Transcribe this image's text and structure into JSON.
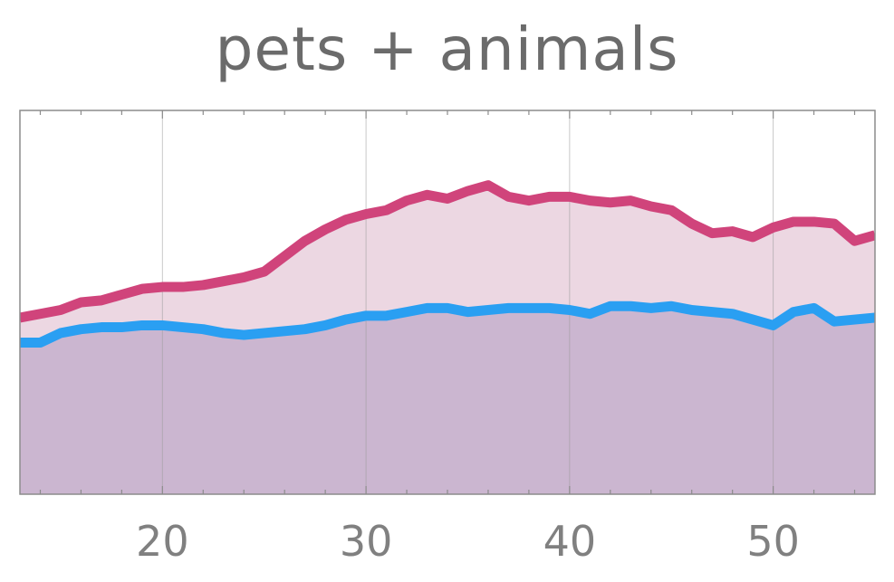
{
  "chart_data": {
    "type": "area",
    "title": "pets + animals",
    "xlabel": "",
    "ylabel": "",
    "xlim": [
      13,
      55
    ],
    "ylim": [
      0,
      100
    ],
    "x_ticks": [
      20,
      30,
      40,
      50
    ],
    "grid": "vertical",
    "legend": "none",
    "x": [
      13,
      14,
      15,
      16,
      17,
      18,
      19,
      20,
      21,
      22,
      23,
      24,
      25,
      26,
      27,
      28,
      29,
      30,
      31,
      32,
      33,
      34,
      35,
      36,
      37,
      38,
      39,
      40,
      41,
      42,
      43,
      44,
      45,
      46,
      47,
      48,
      49,
      50,
      51,
      52,
      53,
      54,
      55
    ],
    "series": [
      {
        "color": "#d0447b",
        "fill": "#ecd7e2",
        "values": [
          46,
          47,
          48,
          50,
          50.5,
          52,
          53.5,
          54,
          54,
          54.5,
          55.5,
          56.5,
          58,
          62,
          66,
          69,
          71.5,
          73,
          74,
          76.5,
          78,
          77,
          79,
          80.5,
          77.5,
          76.5,
          77.5,
          77.5,
          76.5,
          76,
          76.5,
          75,
          74,
          70.5,
          68,
          68.5,
          67,
          69.5,
          71,
          71,
          70.5,
          66,
          67.5
        ]
      },
      {
        "color": "#2a9ff2",
        "fill": "#cbb6d0",
        "values": [
          39.5,
          39.5,
          42,
          43,
          43.5,
          43.5,
          44,
          44,
          43.5,
          43,
          42,
          41.5,
          42,
          42.5,
          43,
          44,
          45.5,
          46.5,
          46.5,
          47.5,
          48.5,
          48.5,
          47.5,
          48,
          48.5,
          48.5,
          48.5,
          48,
          47,
          49,
          49,
          48.5,
          49,
          48,
          47.5,
          47,
          45.5,
          44,
          47.5,
          48.5,
          45,
          45.5,
          46
        ]
      }
    ]
  }
}
